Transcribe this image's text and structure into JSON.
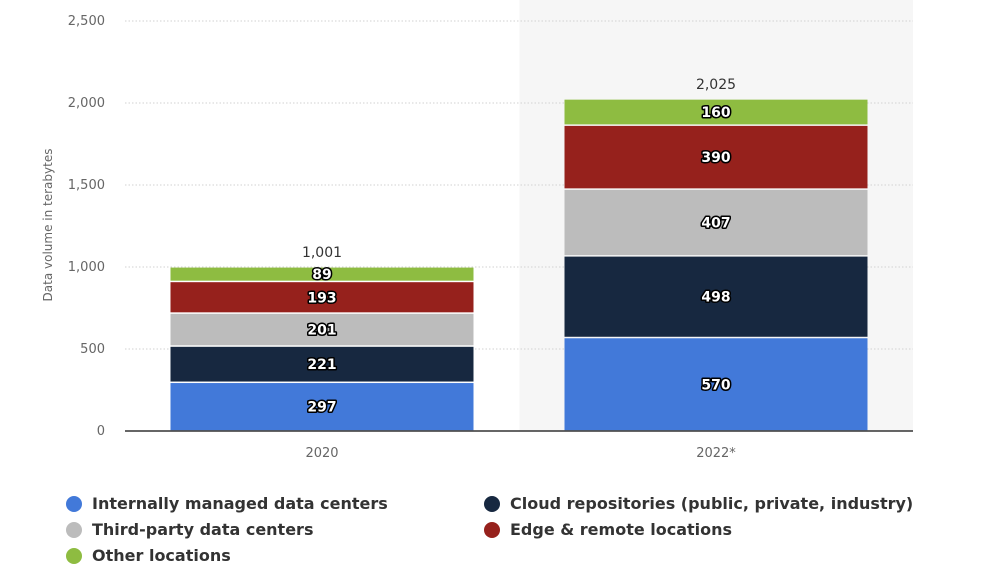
{
  "chart_data": {
    "type": "bar",
    "stacked": true,
    "categories": [
      "2020",
      "2022*"
    ],
    "totals": [
      "1,001",
      "2,025"
    ],
    "ylabel": "Data volume in terabytes",
    "ylim": [
      0,
      2500
    ],
    "yticks": [
      0,
      500,
      1000,
      1500,
      2000,
      2500
    ],
    "ytick_labels": [
      "0",
      "500",
      "1,000",
      "1,500",
      "2,000",
      "2,500"
    ],
    "series": [
      {
        "name": "Internally managed data centers",
        "color": "#4279d9",
        "values": [
          297,
          570
        ]
      },
      {
        "name": "Cloud repositories (public, private, industry)",
        "color": "#172840",
        "values": [
          221,
          498
        ]
      },
      {
        "name": "Third-party data centers",
        "color": "#bcbcbc",
        "values": [
          201,
          407
        ]
      },
      {
        "name": "Edge & remote locations",
        "color": "#96211c",
        "values": [
          193,
          390
        ]
      },
      {
        "name": "Other locations",
        "color": "#8ebc41",
        "values": [
          89,
          160
        ]
      }
    ],
    "legend_position": "bottom",
    "grid": true,
    "highlight_band_color": "#f6f6f6"
  }
}
